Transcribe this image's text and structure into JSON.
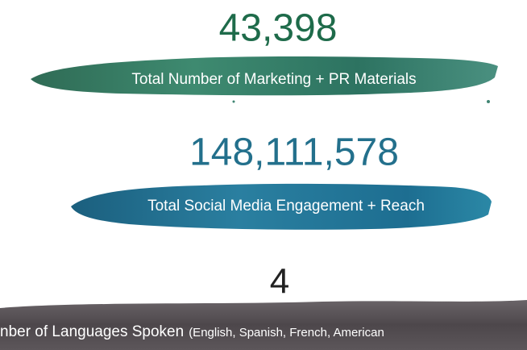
{
  "stats": [
    {
      "value": "43,398",
      "label": "Total Number of Marketing + PR Materials"
    },
    {
      "value": "148,111,578",
      "label": "Total Social Media Engagement + Reach"
    },
    {
      "value": "4",
      "label": "nber of Languages Spoken",
      "note": "(English, Spanish, French, American"
    }
  ]
}
